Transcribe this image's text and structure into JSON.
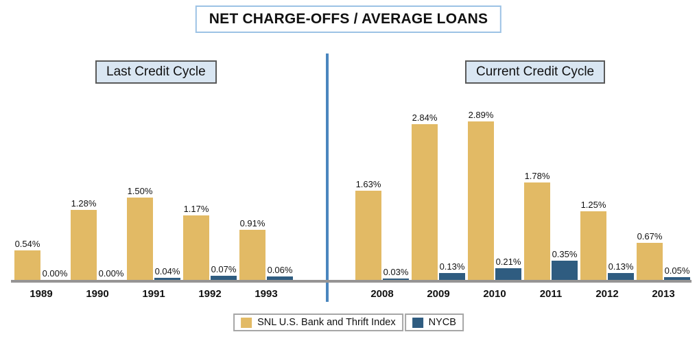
{
  "title": "NET CHARGE-OFFS / AVERAGE LOANS",
  "legend": {
    "series1": "SNL U.S. Bank and Thrift Index",
    "series2": "NYCB"
  },
  "colors": {
    "snl_gold": "#E2BA65",
    "nycb_navy": "#2F5C80",
    "divider_blue": "#4A86BE",
    "axis_gray": "#969494",
    "title_border_blue": "#9CC2E5",
    "section_label_bg": "#D9E6F2",
    "section_label_border": "#595959",
    "legend_border": "#A6A6A6"
  },
  "chart_data": [
    {
      "type": "bar",
      "section": "Last Credit Cycle",
      "categories": [
        "1989",
        "1990",
        "1991",
        "1992",
        "1993"
      ],
      "series": [
        {
          "name": "SNL U.S. Bank and Thrift Index",
          "values": [
            0.54,
            1.28,
            1.5,
            1.17,
            0.91
          ]
        },
        {
          "name": "NYCB",
          "values": [
            0.0,
            0.0,
            0.04,
            0.07,
            0.06
          ]
        }
      ],
      "value_label_format": "0.00%",
      "ylabel": "",
      "xlabel": "",
      "ylim": [
        0,
        3.0
      ],
      "grid": false,
      "legend_position": "bottom"
    },
    {
      "type": "bar",
      "section": "Current Credit Cycle",
      "categories": [
        "2008",
        "2009",
        "2010",
        "2011",
        "2012",
        "2013"
      ],
      "series": [
        {
          "name": "SNL U.S. Bank and Thrift Index",
          "values": [
            1.63,
            2.84,
            2.89,
            1.78,
            1.25,
            0.67
          ]
        },
        {
          "name": "NYCB",
          "values": [
            0.03,
            0.13,
            0.21,
            0.35,
            0.13,
            0.05
          ]
        }
      ],
      "value_label_format": "0.00%",
      "ylabel": "",
      "xlabel": "",
      "ylim": [
        0,
        3.0
      ],
      "grid": false,
      "legend_position": "bottom"
    }
  ]
}
